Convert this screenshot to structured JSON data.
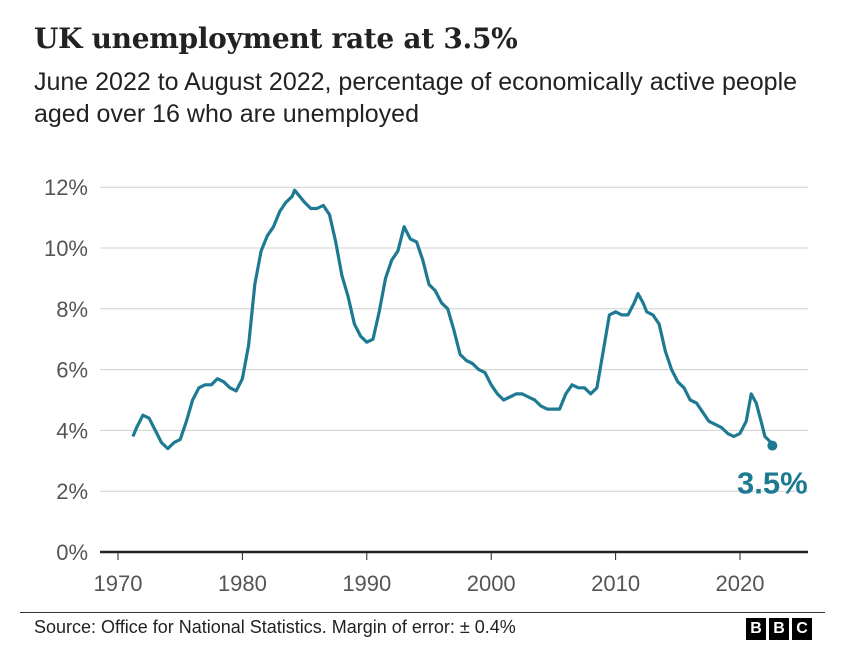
{
  "chart_data": {
    "type": "line",
    "title": "UK unemployment rate at 3.5%",
    "subtitle": "June 2022 to August 2022, percentage of economically active people aged over 16 who are unemployed",
    "xlabel": "",
    "ylabel": "",
    "xlim": [
      1968.5,
      2025.5
    ],
    "ylim": [
      0,
      12
    ],
    "x_ticks": [
      1970,
      1980,
      1990,
      2000,
      2010,
      2020
    ],
    "x_tick_labels": [
      "1970",
      "1980",
      "1990",
      "2000",
      "2010",
      "2020"
    ],
    "y_ticks": [
      0,
      2,
      4,
      6,
      8,
      10,
      12
    ],
    "y_tick_labels": [
      "0%",
      "2%",
      "4%",
      "6%",
      "8%",
      "10%",
      "12%"
    ],
    "grid": "horizontal",
    "line_color": "#1d7a92",
    "annotation": {
      "text": "3.5%",
      "x": 2022.6,
      "y": 3.5
    },
    "series": [
      {
        "x": [
          1971.2,
          1971.5,
          1972,
          1972.5,
          1973,
          1973.5,
          1974,
          1974.5,
          1975,
          1975.5,
          1976,
          1976.5,
          1977,
          1977.5,
          1978,
          1978.5,
          1979,
          1979.5,
          1980,
          1980.5,
          1981,
          1981.5,
          1982,
          1982.5,
          1983,
          1983.5,
          1984,
          1984.2,
          1984.6,
          1985,
          1985.5,
          1986,
          1986.5,
          1987,
          1987.5,
          1988,
          1988.5,
          1989,
          1989.5,
          1990,
          1990.5,
          1991,
          1991.5,
          1992,
          1992.5,
          1993,
          1993.5,
          1994,
          1994.5,
          1995,
          1995.5,
          1996,
          1996.5,
          1997,
          1997.5,
          1998,
          1998.5,
          1999,
          1999.5,
          2000,
          2000.5,
          2001,
          2001.5,
          2002,
          2002.5,
          2003,
          2003.5,
          2004,
          2004.5,
          2005,
          2005.5,
          2006,
          2006.5,
          2007,
          2007.5,
          2008,
          2008.5,
          2009,
          2009.5,
          2010,
          2010.5,
          2011,
          2011.5,
          2011.8,
          2012.2,
          2012.5,
          2013,
          2013.5,
          2014,
          2014.5,
          2015,
          2015.5,
          2016,
          2016.5,
          2017,
          2017.5,
          2018,
          2018.5,
          2019,
          2019.5,
          2020,
          2020.5,
          2020.9,
          2021.3,
          2021.7,
          2022,
          2022.5,
          2022.6
        ],
        "y": [
          3.8,
          4.1,
          4.5,
          4.4,
          4.0,
          3.6,
          3.4,
          3.6,
          3.7,
          4.3,
          5.0,
          5.4,
          5.5,
          5.5,
          5.7,
          5.6,
          5.4,
          5.3,
          5.7,
          6.8,
          8.8,
          9.9,
          10.4,
          10.7,
          11.2,
          11.5,
          11.7,
          11.9,
          11.7,
          11.5,
          11.3,
          11.3,
          11.4,
          11.1,
          10.2,
          9.1,
          8.4,
          7.5,
          7.1,
          6.9,
          7.0,
          7.9,
          9.0,
          9.6,
          9.9,
          10.7,
          10.3,
          10.2,
          9.6,
          8.8,
          8.6,
          8.2,
          8.0,
          7.3,
          6.5,
          6.3,
          6.2,
          6.0,
          5.9,
          5.5,
          5.2,
          5.0,
          5.1,
          5.2,
          5.2,
          5.1,
          5.0,
          4.8,
          4.7,
          4.7,
          4.7,
          5.2,
          5.5,
          5.4,
          5.4,
          5.2,
          5.4,
          6.6,
          7.8,
          7.9,
          7.8,
          7.8,
          8.2,
          8.5,
          8.2,
          7.9,
          7.8,
          7.5,
          6.6,
          6.0,
          5.6,
          5.4,
          5.0,
          4.9,
          4.6,
          4.3,
          4.2,
          4.1,
          3.9,
          3.8,
          3.9,
          4.3,
          5.2,
          4.9,
          4.3,
          3.8,
          3.6,
          3.5
        ]
      }
    ]
  },
  "footer": {
    "source": "Source: Office for National Statistics. Margin of error: ± 0.4%",
    "logo": "BBC"
  }
}
